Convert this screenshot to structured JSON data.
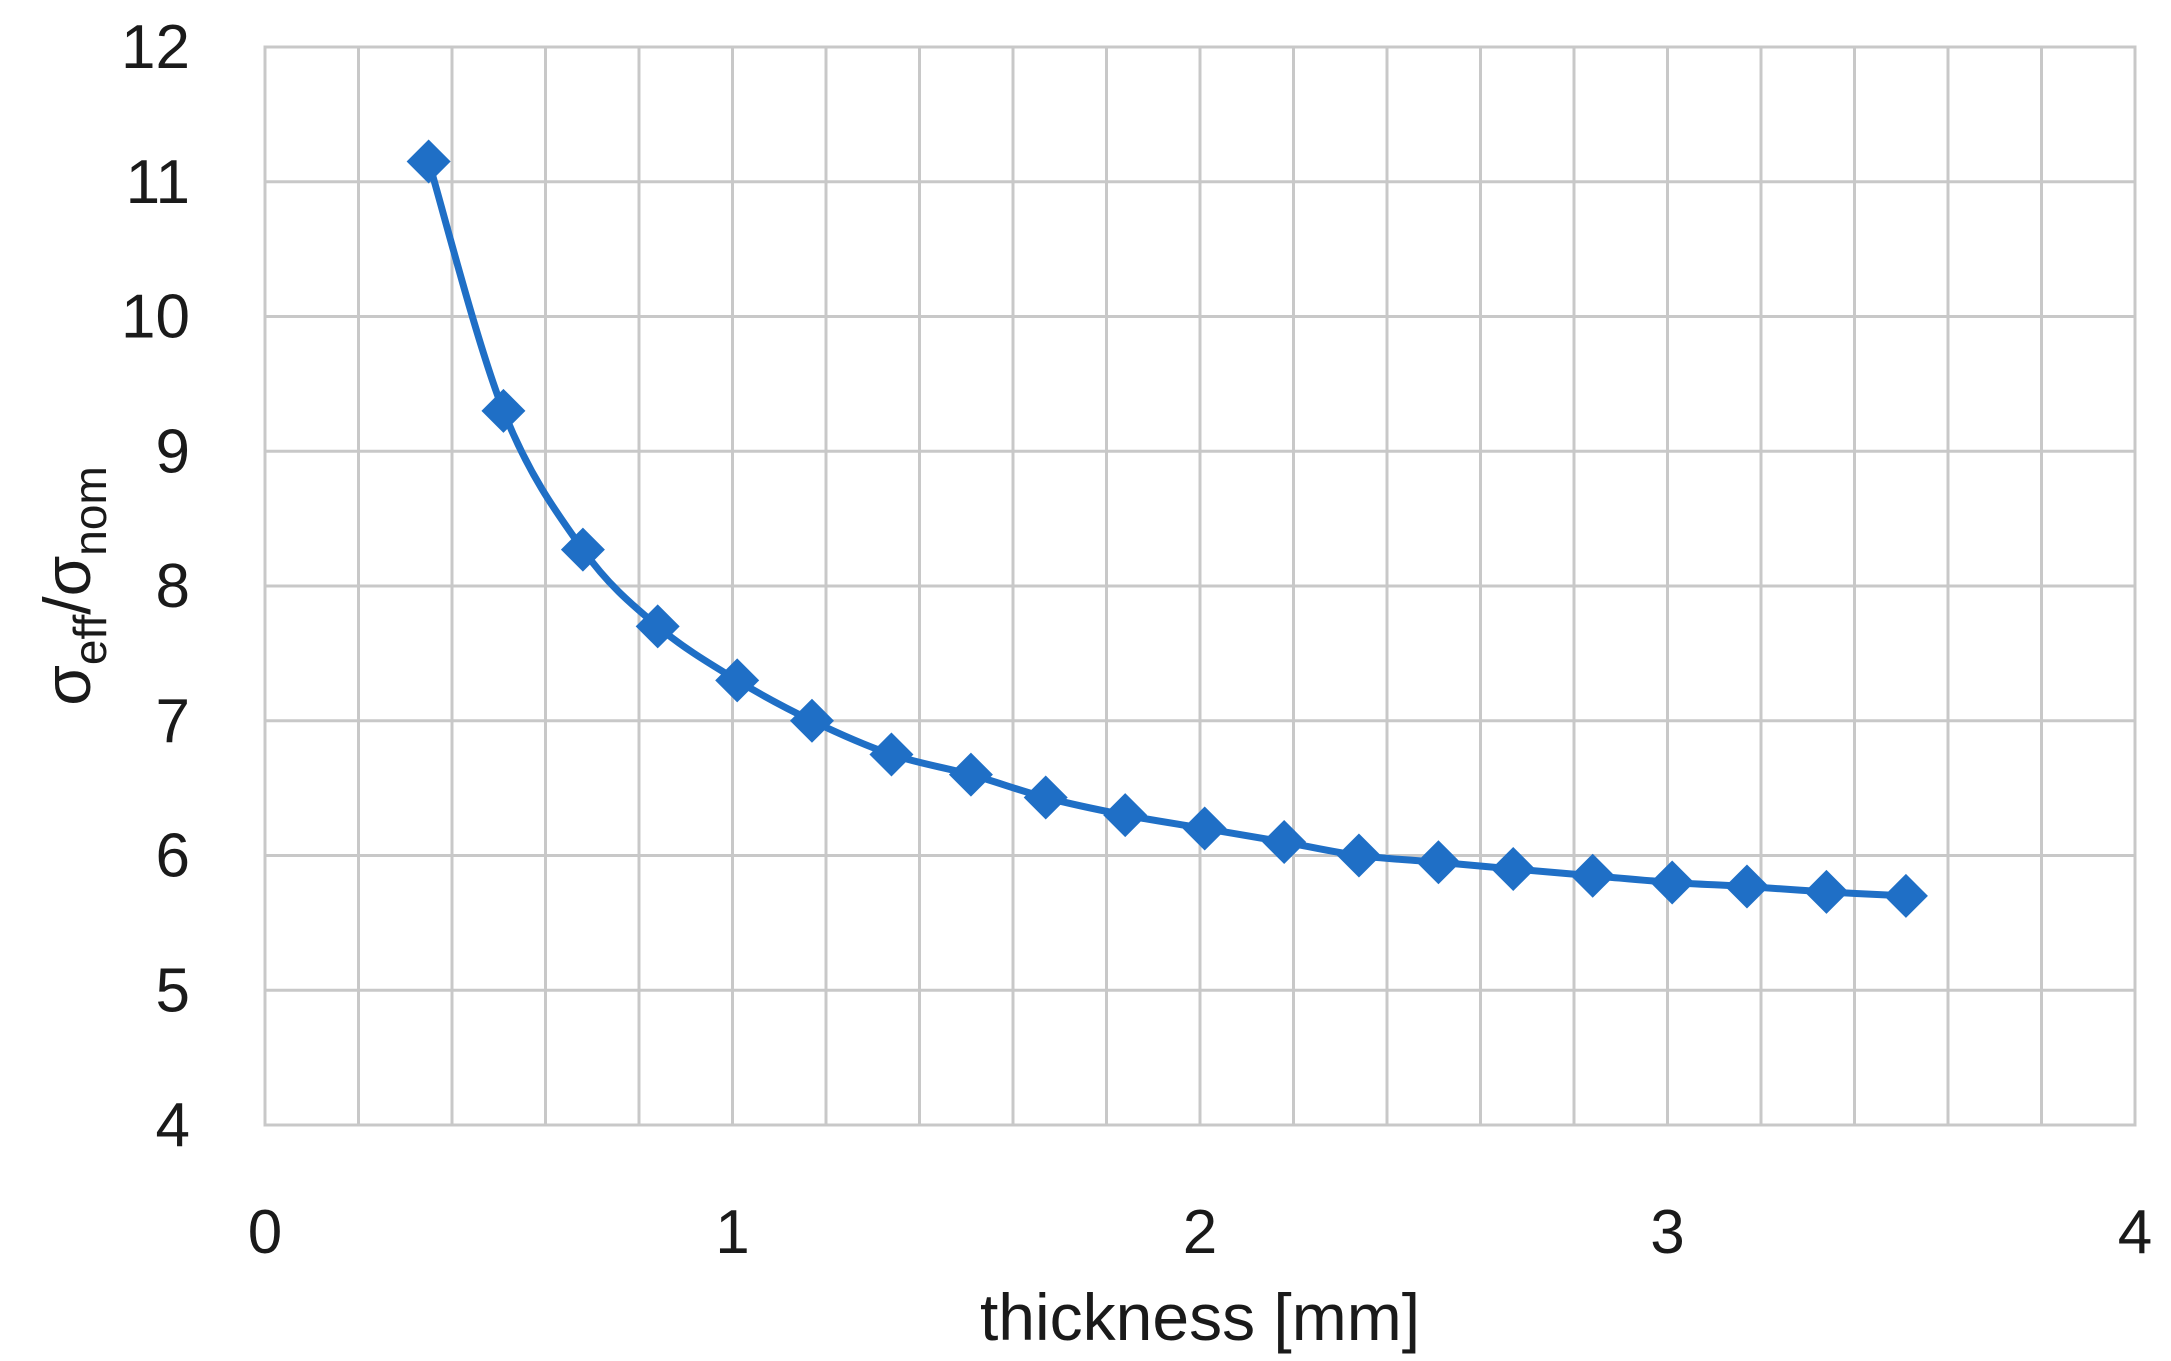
{
  "chart_data": {
    "type": "scatter",
    "xlabel": "thickness [mm]",
    "ylabel": {
      "main": "σ",
      "sub1": "eff",
      "slash": "/σ",
      "sub2": "nom"
    },
    "xlim": [
      0,
      4
    ],
    "ylim": [
      4,
      12
    ],
    "x_ticks": [
      "0",
      "1",
      "2",
      "3",
      "4"
    ],
    "y_ticks": [
      "4",
      "5",
      "6",
      "7",
      "8",
      "9",
      "10",
      "11",
      "12"
    ],
    "x_minor_step": 0.2,
    "grid": true,
    "legend": "none",
    "series": [
      {
        "color": "#1f6fc6",
        "marker": "diamond",
        "line": "smooth",
        "x": [
          0.35,
          0.51,
          0.68,
          0.84,
          1.01,
          1.17,
          1.34,
          1.51,
          1.67,
          1.84,
          2.01,
          2.18,
          2.34,
          2.51,
          2.67,
          2.84,
          3.01,
          3.17,
          3.34,
          3.51
        ],
        "y": [
          11.15,
          9.3,
          8.27,
          7.7,
          7.3,
          7.0,
          6.75,
          6.6,
          6.43,
          6.3,
          6.2,
          6.1,
          6.0,
          5.95,
          5.9,
          5.85,
          5.8,
          5.77,
          5.73,
          5.7
        ]
      }
    ]
  }
}
